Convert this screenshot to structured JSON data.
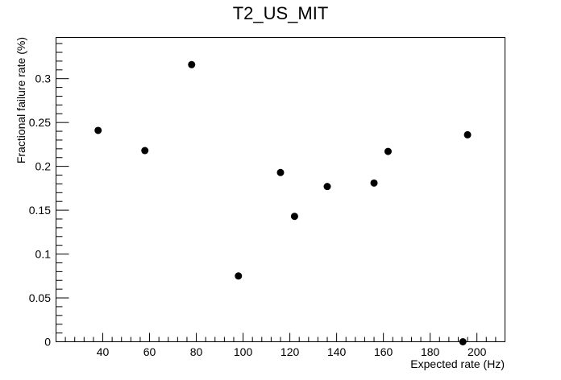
{
  "chart_data": {
    "type": "scatter",
    "title": "T2_US_MIT",
    "xlabel": "Expected rate (Hz)",
    "ylabel": "Fractional failure rate (%)",
    "xlim": [
      20,
      212
    ],
    "ylim": [
      0,
      0.347
    ],
    "x_ticks": [
      40,
      60,
      80,
      100,
      120,
      140,
      160,
      180,
      200
    ],
    "x_tick_labels": [
      "40",
      "60",
      "80",
      "100",
      "120",
      "140",
      "160",
      "180",
      "200"
    ],
    "y_ticks": [
      0,
      0.05,
      0.1,
      0.15,
      0.2,
      0.25,
      0.3
    ],
    "y_tick_labels": [
      "0",
      "0.05",
      "0.1",
      "0.15",
      "0.2",
      "0.25",
      "0.3"
    ],
    "grid": false,
    "points": [
      {
        "x": 38,
        "y": 0.241
      },
      {
        "x": 58,
        "y": 0.218
      },
      {
        "x": 78,
        "y": 0.316
      },
      {
        "x": 98,
        "y": 0.075
      },
      {
        "x": 116,
        "y": 0.193
      },
      {
        "x": 122,
        "y": 0.143
      },
      {
        "x": 136,
        "y": 0.177
      },
      {
        "x": 156,
        "y": 0.181
      },
      {
        "x": 162,
        "y": 0.217
      },
      {
        "x": 194,
        "y": 0.0
      },
      {
        "x": 196,
        "y": 0.236
      }
    ]
  }
}
